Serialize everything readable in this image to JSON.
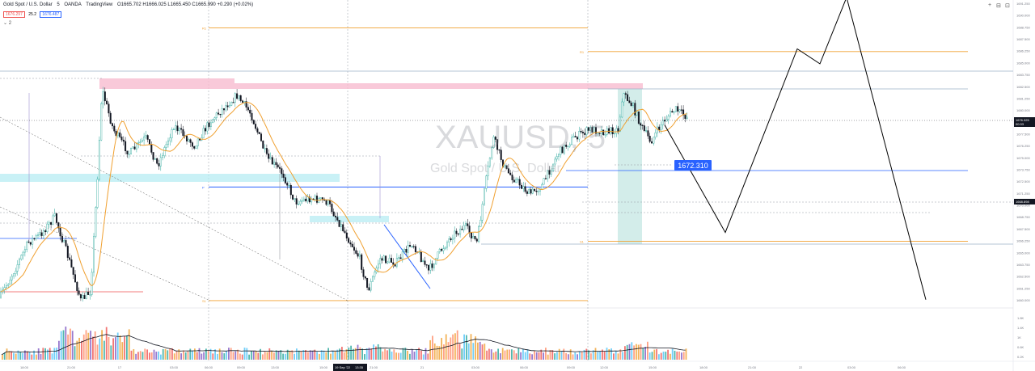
{
  "header": {
    "symbol": "Gold Spot / U.S. Dollar",
    "interval": "5",
    "exchange": "OANDA",
    "platform": "TradingView",
    "ohlc": "O1665.702 H1666.025 L1665.450 C1665.990 +0.290 (+0.02%)",
    "sell_price": "1676.297",
    "spread": "25.2",
    "buy_price": "1676.487",
    "indicator_toggle": "⌄ 2"
  },
  "watermark": {
    "ticker": "XAUUSD, 5",
    "name": "Gold Spot / U.S. Dollar"
  },
  "colors": {
    "up": "#26a69a",
    "down": "#131722",
    "ma": "#f0a030",
    "level": "#f0a030",
    "hline": "#2962ff",
    "supply": "#f8bbd0",
    "demand": "#b2ebf2"
  },
  "annotations": {
    "tp_label": "1672.310"
  },
  "chart_data": {
    "type": "candlestick",
    "ylim": [
      1658.0,
      1692.5
    ],
    "price_ticks": [
      "1691.250",
      "1690.000",
      "1688.750",
      "1687.500",
      "1686.250",
      "1685.000",
      "1683.750",
      "1682.500",
      "1681.250",
      "1680.000",
      "1678.750",
      "1677.500",
      "1676.250",
      "1675.000",
      "1673.750",
      "1672.500",
      "1671.250",
      "1670.000",
      "1668.750",
      "1667.500",
      "1666.250",
      "1665.000",
      "1663.750",
      "1662.500",
      "1661.250",
      "1660.000"
    ],
    "current_price": {
      "value": "1676.325",
      "countdown": "00:33"
    },
    "crosshair_price": "1668.898",
    "volume_ticks": [
      "1.8K",
      "1.4K",
      "1K",
      "0.6K",
      "0.2K"
    ],
    "time_ticks": [
      "18:00",
      "21:00",
      "17",
      "03:00",
      "06:00",
      "09:00",
      "13:00",
      "15:00",
      "18:00",
      "21:00",
      "21",
      "03:00",
      "06:00",
      "09:00",
      "12:00",
      "15:00",
      "18:00",
      "21:00",
      "22",
      "03:00",
      "06:00"
    ],
    "time_highlight": [
      "19 Sep '22",
      "13:35"
    ],
    "levels": [
      {
        "label": "R1",
        "price": 1689.3
      },
      {
        "label": "P",
        "price": 1671.1
      },
      {
        "label": "S1",
        "price": 1658.1
      }
    ],
    "levels_right": [
      {
        "label": "R1",
        "price": 1686.6
      },
      {
        "label": "S1",
        "price": 1664.9
      }
    ],
    "projection": [
      [
        822,
        1678.2
      ],
      [
        897,
        1665.9
      ],
      [
        986,
        1686.9
      ],
      [
        1014,
        1685.2
      ],
      [
        1047,
        1692.8
      ],
      [
        1145,
        1658.2
      ]
    ],
    "ma_hint": "20"
  }
}
